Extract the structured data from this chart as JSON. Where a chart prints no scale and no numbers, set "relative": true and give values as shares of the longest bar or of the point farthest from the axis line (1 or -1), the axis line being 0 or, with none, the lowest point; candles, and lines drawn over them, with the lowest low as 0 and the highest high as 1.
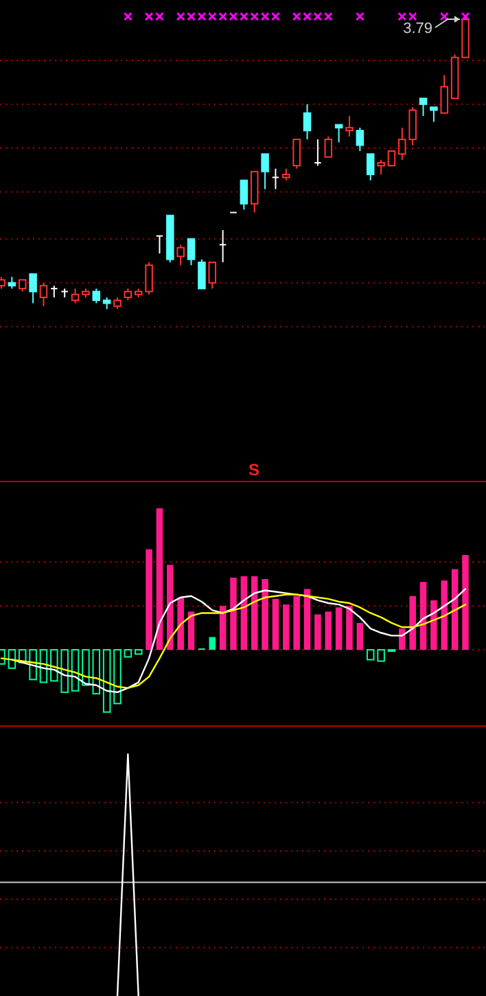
{
  "chart_data": [
    {
      "type": "candlestick",
      "relative": true,
      "marker": "cross",
      "ref_lines": [
        {
          "axis": "y",
          "value": 0.85,
          "color": "#b00000",
          "line_style": "dotted"
        },
        {
          "axis": "y",
          "value": 0.7,
          "color": "#b00000",
          "line_style": "dotted"
        },
        {
          "axis": "y",
          "value": 0.55,
          "color": "#b00000",
          "line_style": "dotted"
        },
        {
          "axis": "y",
          "value": 0.4,
          "color": "#b00000",
          "line_style": "dotted"
        },
        {
          "axis": "y",
          "value": 0.24,
          "color": "#b00000",
          "line_style": "dotted"
        },
        {
          "axis": "y",
          "value": 0.09,
          "color": "#b00000",
          "line_style": "dotted"
        },
        {
          "axis": "y",
          "value": -0.06,
          "color": "#b00000",
          "line_style": "dotted"
        }
      ],
      "categories": [
        null,
        null,
        null,
        null,
        null,
        null,
        null,
        null,
        null,
        null,
        null,
        null,
        null,
        null,
        null,
        null,
        null,
        null,
        null,
        null,
        null,
        null,
        null,
        null,
        null,
        null,
        null,
        null,
        null,
        null,
        null,
        null,
        null,
        null,
        null,
        null,
        null,
        null,
        null,
        null,
        null,
        null,
        null,
        null,
        null
      ],
      "ohlc": [
        [
          0.08,
          0.11,
          0.07,
          0.1
        ],
        [
          0.09,
          0.11,
          0.07,
          0.08
        ],
        [
          0.07,
          0.1,
          0.06,
          0.1
        ],
        [
          0.12,
          0.12,
          0.02,
          0.06
        ],
        [
          0.04,
          0.09,
          0.01,
          0.08
        ],
        [
          0.07,
          0.08,
          0.04,
          0.07
        ],
        [
          0.06,
          0.07,
          0.04,
          0.06
        ],
        [
          0.03,
          0.07,
          0.02,
          0.05
        ],
        [
          0.05,
          0.07,
          0.04,
          0.06
        ],
        [
          0.06,
          0.07,
          0.02,
          0.03
        ],
        [
          0.03,
          0.04,
          0,
          0.02
        ],
        [
          0.01,
          0.04,
          0,
          0.03
        ],
        [
          0.04,
          0.07,
          0.03,
          0.06
        ],
        [
          0.05,
          0.07,
          0.04,
          0.06
        ],
        [
          0.06,
          0.16,
          0.05,
          0.15
        ],
        [
          0.25,
          0.25,
          0.19,
          0.25
        ],
        [
          0.32,
          0.32,
          0.16,
          0.17
        ],
        [
          0.18,
          0.22,
          0.15,
          0.21
        ],
        [
          0.24,
          0.24,
          0.15,
          0.17
        ],
        [
          0.16,
          0.17,
          0.07,
          0.07
        ],
        [
          0.09,
          0.16,
          0.07,
          0.16
        ],
        [
          0.22,
          0.27,
          0.16,
          0.22
        ],
        [
          0.33,
          0.33,
          0.33,
          0.33
        ],
        [
          0.44,
          0.44,
          0.34,
          0.36
        ],
        [
          0.36,
          0.47,
          0.33,
          0.47
        ],
        [
          0.53,
          0.53,
          0.41,
          0.47
        ],
        [
          0.45,
          0.48,
          0.41,
          0.45
        ],
        [
          0.45,
          0.48,
          0.44,
          0.46
        ],
        [
          0.49,
          0.58,
          0.48,
          0.58
        ],
        [
          0.67,
          0.7,
          0.58,
          0.61
        ],
        [
          0.5,
          0.58,
          0.49,
          0.5
        ],
        [
          0.52,
          0.59,
          0.52,
          0.58
        ],
        [
          0.63,
          0.63,
          0.57,
          0.62
        ],
        [
          0.61,
          0.66,
          0.59,
          0.62
        ],
        [
          0.61,
          0.62,
          0.54,
          0.56
        ],
        [
          0.53,
          0.53,
          0.44,
          0.46
        ],
        [
          0.49,
          0.51,
          0.46,
          0.5
        ],
        [
          0.49,
          0.54,
          0.49,
          0.54
        ],
        [
          0.53,
          0.62,
          0.51,
          0.58
        ],
        [
          0.58,
          0.69,
          0.56,
          0.68
        ],
        [
          0.72,
          0.72,
          0.66,
          0.7
        ],
        [
          0.69,
          0.69,
          0.64,
          0.68
        ],
        [
          0.67,
          0.8,
          0.67,
          0.76
        ],
        [
          0.72,
          0.87,
          0.72,
          0.86
        ],
        [
          0.86,
          1,
          0.86,
          0.99
        ]
      ],
      "series": [
        {
          "type": "scatter",
          "color": "#ff00ff",
          "values": [
            null,
            null,
            null,
            null,
            null,
            null,
            null,
            null,
            null,
            null,
            null,
            null,
            1,
            null,
            1,
            1,
            null,
            1,
            1,
            1,
            1,
            1,
            1,
            1,
            1,
            1,
            1,
            null,
            1,
            1,
            1,
            1,
            null,
            null,
            1,
            null,
            null,
            null,
            1,
            1,
            null,
            null,
            1,
            null,
            1
          ]
        }
      ],
      "annotations": [
        {
          "text": "3.79",
          "y": 1
        }
      ]
    },
    {
      "type": "bar",
      "relative": true,
      "ref_lines": [
        {
          "axis": "y",
          "value": 0.62,
          "color": "#b00000",
          "line_style": "dotted"
        },
        {
          "axis": "y",
          "value": 0.31,
          "color": "#b00000",
          "line_style": "dotted"
        },
        {
          "axis": "y",
          "value": 0,
          "color": "#b00000",
          "line_style": "dotted"
        }
      ],
      "categories": [
        null,
        null,
        null,
        null,
        null,
        null,
        null,
        null,
        null,
        null,
        null,
        null,
        null,
        null,
        null,
        null,
        null,
        null,
        null,
        null,
        null,
        null,
        null,
        null,
        null,
        null,
        null,
        null,
        null,
        null,
        null,
        null,
        null,
        null,
        null,
        null,
        null,
        null,
        null,
        null,
        null,
        null,
        null,
        null,
        null
      ],
      "series": [
        {
          "type": "bar",
          "colors": [
            "#00ff99",
            "#00ff99",
            "#00ff99",
            "#00ff99",
            "#00ff99",
            "#00ff99",
            "#00ff99",
            "#00ff99",
            "#00ff99",
            "#00ff99",
            "#00ff99",
            "#00ff99",
            "#00ff99",
            "#00ff99",
            "#ff1a8c",
            "#ff1a8c",
            "#ff1a8c",
            "#ff1a8c",
            "#ff1a8c",
            "#00ff99",
            "#00ff99",
            "#ff1a8c",
            "#ff1a8c",
            "#ff1a8c",
            "#ff1a8c",
            "#ff1a8c",
            "#ff1a8c",
            "#ff1a8c",
            "#ff1a8c",
            "#ff1a8c",
            "#ff1a8c",
            "#ff1a8c",
            "#ff1a8c",
            "#ff1a8c",
            "#ff1a8c",
            "#00ff99",
            "#00ff99",
            "#00ff99",
            "#ff1a8c",
            "#ff1a8c",
            "#ff1a8c",
            "#ff1a8c",
            "#ff1a8c",
            "#ff1a8c",
            "#ff1a8c"
          ],
          "values": [
            -0.1,
            -0.13,
            -0.09,
            -0.21,
            -0.23,
            -0.22,
            -0.3,
            -0.29,
            -0.25,
            -0.31,
            -0.44,
            -0.38,
            -0.05,
            -0.03,
            0.71,
            1,
            0.6,
            0.37,
            0.27,
            0.01,
            0.09,
            0.31,
            0.51,
            0.52,
            0.52,
            0.5,
            0.36,
            0.32,
            0.38,
            0.43,
            0.25,
            0.27,
            0.3,
            0.31,
            0.19,
            -0.07,
            -0.08,
            -0.01,
            0.15,
            0.38,
            0.48,
            0.35,
            0.49,
            0.57,
            0.67
          ]
        },
        {
          "type": "line",
          "color": "#ffffff",
          "values": [
            null,
            -0.07,
            -0.09,
            -0.11,
            -0.13,
            -0.14,
            -0.18,
            -0.19,
            -0.24,
            -0.25,
            -0.29,
            -0.3,
            -0.27,
            -0.23,
            -0.06,
            0.19,
            0.33,
            0.37,
            0.38,
            0.34,
            0.28,
            0.26,
            0.29,
            0.35,
            0.4,
            0.42,
            0.41,
            0.4,
            0.39,
            0.38,
            0.35,
            0.33,
            0.32,
            0.29,
            0.23,
            0.15,
            0.12,
            0.1,
            0.1,
            0.15,
            0.22,
            0.26,
            0.31,
            0.36,
            0.43
          ]
        },
        {
          "type": "line",
          "color": "#ffff00",
          "values": [
            -0.06,
            -0.07,
            -0.08,
            -0.09,
            -0.1,
            -0.12,
            -0.14,
            -0.16,
            -0.19,
            -0.2,
            -0.23,
            -0.26,
            -0.27,
            -0.25,
            -0.19,
            -0.06,
            0.08,
            0.18,
            0.24,
            0.26,
            0.26,
            0.26,
            0.28,
            0.3,
            0.34,
            0.37,
            0.38,
            0.39,
            0.39,
            0.38,
            0.37,
            0.36,
            0.34,
            0.33,
            0.3,
            0.26,
            0.23,
            0.19,
            0.16,
            0.16,
            0.18,
            0.21,
            0.24,
            0.28,
            0.32
          ]
        }
      ],
      "annotations": [
        "S"
      ]
    },
    {
      "type": "line",
      "relative": true,
      "color": "#ffffff",
      "categories": [
        null,
        null,
        null,
        null,
        null,
        null,
        null,
        null,
        null,
        null,
        null,
        null,
        null,
        null,
        null,
        null,
        null,
        null,
        null,
        null,
        null,
        null,
        null,
        null,
        null,
        null,
        null,
        null,
        null,
        null,
        null,
        null,
        null,
        null,
        null,
        null,
        null,
        null,
        null,
        null,
        null,
        null,
        null,
        null,
        null
      ],
      "values": [
        null,
        null,
        null,
        null,
        null,
        null,
        null,
        null,
        null,
        null,
        null,
        0,
        1,
        0,
        null,
        null,
        null,
        null,
        null,
        null,
        null,
        null,
        null,
        null,
        null,
        null,
        null,
        null,
        null,
        null,
        null,
        null,
        null,
        null,
        null,
        null,
        null,
        null,
        null,
        null,
        null,
        null,
        null,
        null,
        null
      ],
      "ref_lines": [
        {
          "axis": "y",
          "value": 0.8,
          "color": "#b00000",
          "line_style": "dotted"
        },
        {
          "axis": "y",
          "value": 0.6,
          "color": "#b00000",
          "line_style": "dotted"
        },
        {
          "axis": "y",
          "value": 0.4,
          "color": "#b00000",
          "line_style": "dotted"
        },
        {
          "axis": "y",
          "value": 0.2,
          "color": "#b00000",
          "line_style": "dotted"
        },
        {
          "axis": "y",
          "value": 0.47,
          "color": "#c8c8c8",
          "line_style": "solid"
        }
      ]
    }
  ]
}
